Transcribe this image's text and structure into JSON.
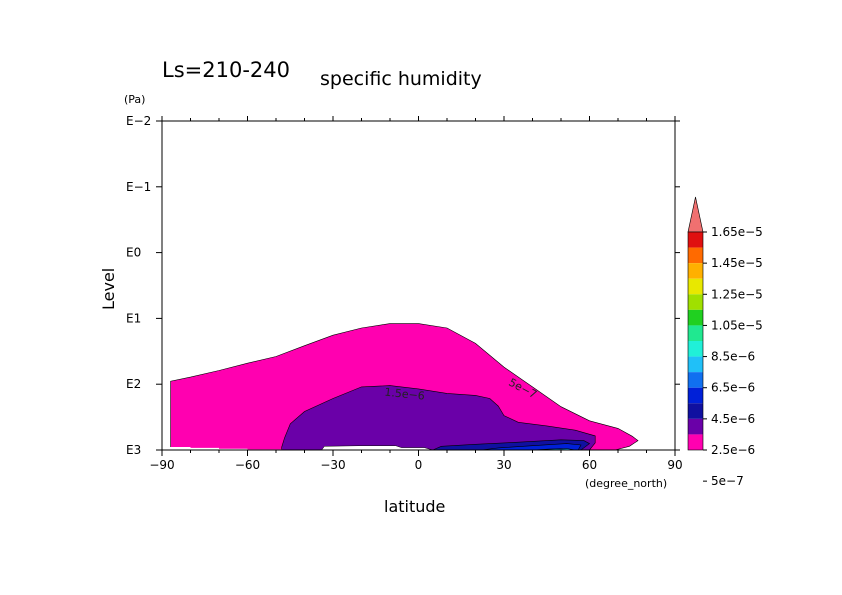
{
  "chart_data": {
    "type": "contour",
    "title": "Ls=210-240",
    "subtitle": "specific humidity",
    "xlabel": "latitude",
    "xunit": "(degree_north)",
    "ylabel": "Level",
    "yunit": "(Pa)",
    "y_scale": "log",
    "y_inverted": true,
    "xlim": [
      -90,
      90
    ],
    "ylim": [
      0.01,
      1000
    ],
    "x_ticks": [
      "−90",
      "−60",
      "−30",
      "0",
      "30",
      "60",
      "90"
    ],
    "x_tick_values": [
      -90,
      -60,
      -30,
      0,
      30,
      60,
      90
    ],
    "y_ticks": [
      "E−2",
      "E−1",
      "E0",
      "E1",
      "E2",
      "E3"
    ],
    "y_tick_values": [
      0.01,
      0.1,
      1,
      10,
      100,
      1000
    ],
    "colorbar": {
      "labels": [
        "1.65e−5",
        "1.45e−5",
        "1.25e−5",
        "1.05e−5",
        "8.5e−6",
        "6.5e−6",
        "4.5e−6",
        "2.5e−6",
        "5e−7"
      ],
      "colors": [
        "#f07070",
        "#e01010",
        "#ff6a00",
        "#ffb000",
        "#e8e800",
        "#a0e000",
        "#20d020",
        "#20e890",
        "#20f0d8",
        "#20c0f8",
        "#1070f0",
        "#0020d8",
        "#1010a0",
        "#6a00a8",
        "#ff00b0"
      ]
    },
    "contour_labels": [
      "5e−7",
      "1.5e−6"
    ],
    "series": [
      {
        "level": "5e−7",
        "color": "#ff00b0",
        "outline_lat_pa": [
          [
            -87,
            1000
          ],
          [
            -87,
            90
          ],
          [
            -80,
            78
          ],
          [
            -70,
            62
          ],
          [
            -60,
            48
          ],
          [
            -50,
            38
          ],
          [
            -40,
            26
          ],
          [
            -30,
            18
          ],
          [
            -20,
            14
          ],
          [
            -10,
            12
          ],
          [
            0,
            12
          ],
          [
            10,
            14
          ],
          [
            20,
            24
          ],
          [
            30,
            55
          ],
          [
            40,
            110
          ],
          [
            50,
            220
          ],
          [
            60,
            360
          ],
          [
            70,
            470
          ],
          [
            75,
            620
          ],
          [
            77,
            720
          ],
          [
            74,
            880
          ],
          [
            69,
            1000
          ]
        ]
      },
      {
        "level": "1.5e−6",
        "color": "#6a00a8",
        "outline_lat_pa": [
          [
            -48,
            1000
          ],
          [
            -48,
            900
          ],
          [
            -47,
            650
          ],
          [
            -45,
            400
          ],
          [
            -40,
            260
          ],
          [
            -30,
            165
          ],
          [
            -20,
            110
          ],
          [
            -10,
            105
          ],
          [
            0,
            118
          ],
          [
            10,
            138
          ],
          [
            20,
            148
          ],
          [
            25,
            165
          ],
          [
            28,
            215
          ],
          [
            30,
            300
          ],
          [
            35,
            380
          ],
          [
            45,
            430
          ],
          [
            55,
            500
          ],
          [
            62,
            610
          ],
          [
            62,
            780
          ],
          [
            60,
            1000
          ]
        ]
      },
      {
        "level": "2.5e−6",
        "color": "#1010a0",
        "outline_lat_pa": [
          [
            5,
            1000
          ],
          [
            8,
            880
          ],
          [
            20,
            820
          ],
          [
            35,
            760
          ],
          [
            50,
            700
          ],
          [
            58,
            720
          ],
          [
            60,
            800
          ],
          [
            57,
            1000
          ]
        ]
      },
      {
        "level": "4.5e−6",
        "color": "#0020d8",
        "outline_lat_pa": [
          [
            22,
            1000
          ],
          [
            28,
            930
          ],
          [
            40,
            860
          ],
          [
            52,
            800
          ],
          [
            57,
            840
          ],
          [
            56,
            1000
          ]
        ]
      },
      {
        "level": "6.5e−6",
        "color": "#20c0f8",
        "outline_lat_pa": [
          [
            40,
            1000
          ],
          [
            46,
            970
          ],
          [
            52,
            950
          ],
          [
            55,
            1000
          ]
        ]
      },
      {
        "level": "8.5e−6",
        "color": "#20e890",
        "outline_lat_pa": [
          [
            46,
            1000
          ],
          [
            50,
            985
          ],
          [
            54,
            1000
          ]
        ]
      }
    ],
    "missing_region": {
      "color": "#ffffff",
      "outline_lat_pa": [
        [
          -88,
          1000
        ],
        [
          -88,
          900
        ],
        [
          -80,
          900
        ],
        [
          -80,
          930
        ],
        [
          -70,
          930
        ],
        [
          -70,
          960
        ],
        [
          -60,
          960
        ],
        [
          -60,
          980
        ],
        [
          -48,
          980
        ],
        [
          -48,
          1000
        ]
      ]
    },
    "missing_notch": {
      "color": "#ffffff",
      "outline_lat_pa": [
        [
          -34,
          1000
        ],
        [
          -33,
          880
        ],
        [
          -20,
          860
        ],
        [
          -8,
          860
        ],
        [
          -6,
          920
        ],
        [
          2,
          920
        ],
        [
          5,
          1000
        ]
      ]
    }
  }
}
